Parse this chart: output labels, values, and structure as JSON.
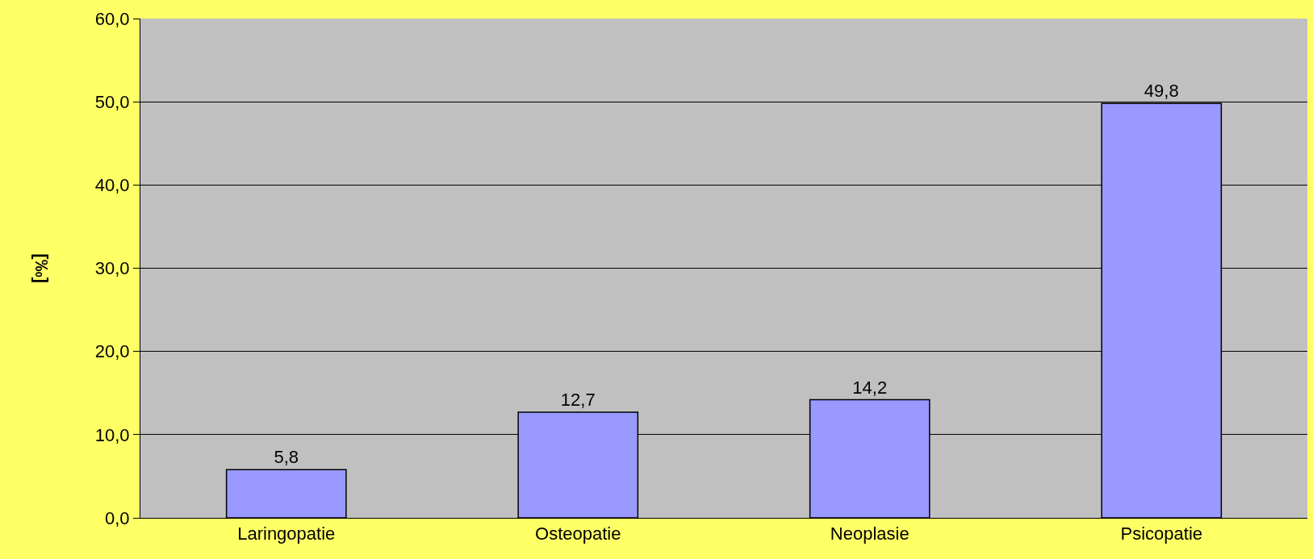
{
  "chart_data": {
    "type": "bar",
    "ylabel": "[‰]",
    "categories": [
      "Laringopatie",
      "Osteopatie",
      "Neoplasie",
      "Psicopatie"
    ],
    "values": [
      5.8,
      12.7,
      14.2,
      49.8
    ],
    "color": "#9999ff",
    "value_labels": [
      "5,8",
      "12,7",
      "14,2",
      "49,8"
    ],
    "grid": "y",
    "ylim": [
      0,
      60
    ],
    "yticks": [
      {
        "value": 0,
        "label": "0,0"
      },
      {
        "value": 10,
        "label": "10,0"
      },
      {
        "value": 20,
        "label": "20,0"
      },
      {
        "value": 30,
        "label": "30,0"
      },
      {
        "value": 40,
        "label": "40,0"
      },
      {
        "value": 50,
        "label": "50,0"
      },
      {
        "value": 60,
        "label": "60,0"
      }
    ]
  }
}
